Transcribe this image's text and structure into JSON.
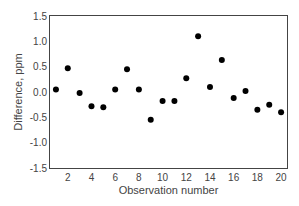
{
  "chart_data": {
    "type": "scatter",
    "x": [
      1,
      2,
      3,
      4,
      5,
      6,
      7,
      8,
      9,
      10,
      11,
      12,
      13,
      14,
      15,
      16,
      17,
      18,
      19,
      20
    ],
    "values": [
      0.05,
      0.47,
      -0.02,
      -0.28,
      -0.3,
      0.05,
      0.45,
      0.05,
      -0.55,
      -0.18,
      -0.18,
      0.27,
      1.1,
      0.1,
      0.63,
      -0.12,
      0.02,
      -0.35,
      -0.25,
      -0.4
    ],
    "xlabel": "Observation number",
    "ylabel": "Difference, ppm",
    "xlim": [
      0.5,
      20.5
    ],
    "ylim": [
      -1.5,
      1.5
    ],
    "xticks": [
      2,
      4,
      6,
      8,
      10,
      12,
      14,
      16,
      18,
      20
    ],
    "yticks": [
      -1.5,
      {
        "value": -1.0,
        "label": "-1.0"
      },
      -0.5,
      {
        "value": 0.0,
        "label": "0.0"
      },
      0.5,
      {
        "value": 1.0,
        "label": "1.0"
      },
      1.5
    ],
    "color": "#000000",
    "marker": "circle",
    "grid": false
  }
}
